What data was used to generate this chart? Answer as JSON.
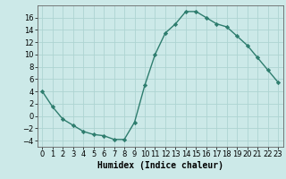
{
  "x": [
    0,
    1,
    2,
    3,
    4,
    5,
    6,
    7,
    8,
    9,
    10,
    11,
    12,
    13,
    14,
    15,
    16,
    17,
    18,
    19,
    20,
    21,
    22,
    23
  ],
  "y": [
    4,
    1.5,
    -0.5,
    -1.5,
    -2.5,
    -3,
    -3.2,
    -3.8,
    -3.8,
    -1,
    5,
    10,
    13.5,
    15,
    17,
    17,
    16,
    15,
    14.5,
    13,
    11.5,
    9.5,
    7.5,
    5.5
  ],
  "line_color": "#2e7d6e",
  "marker": "D",
  "marker_size": 2.2,
  "bg_color": "#cce9e8",
  "grid_color": "#aed4d2",
  "xlabel": "Humidex (Indice chaleur)",
  "xlabel_fontsize": 7,
  "tick_fontsize": 6,
  "ylim": [
    -5,
    18
  ],
  "xlim": [
    -0.5,
    23.5
  ],
  "yticks": [
    -4,
    -2,
    0,
    2,
    4,
    6,
    8,
    10,
    12,
    14,
    16
  ],
  "xticks": [
    0,
    1,
    2,
    3,
    4,
    5,
    6,
    7,
    8,
    9,
    10,
    11,
    12,
    13,
    14,
    15,
    16,
    17,
    18,
    19,
    20,
    21,
    22,
    23
  ]
}
